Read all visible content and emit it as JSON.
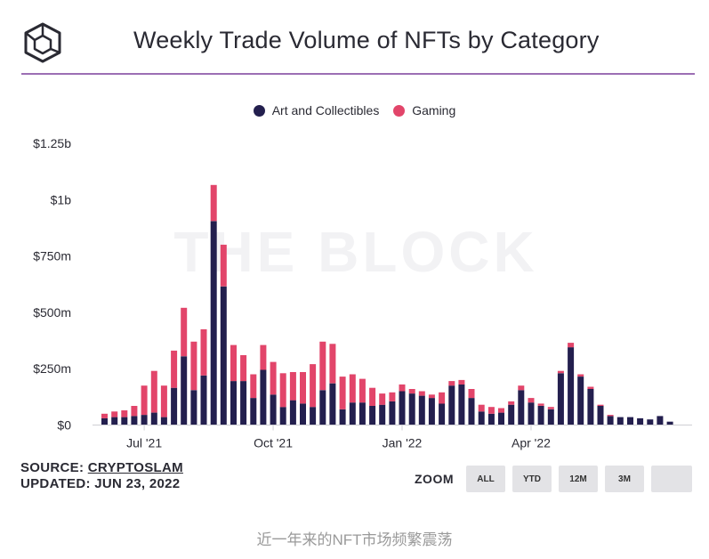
{
  "header": {
    "logo_icon": "the-block-cube-icon",
    "title": "Weekly Trade Volume of NFTs by Category"
  },
  "watermark": "THE BLOCK",
  "footer": {
    "source_prefix": "SOURCE: ",
    "source_name": "CRYPTOSLAM",
    "updated": "UPDATED: JUN 23, 2022"
  },
  "zoom": {
    "label": "ZOOM",
    "buttons": [
      "ALL",
      "YTD",
      "12M",
      "3M"
    ]
  },
  "caption": "近一年来的NFT市场频繁震荡",
  "colors": {
    "art": "#231f4e",
    "gaming": "#e2456a"
  },
  "chart_data": {
    "type": "bar",
    "stacked": true,
    "title": "Weekly Trade Volume of NFTs by Category",
    "legend_position": "top-center",
    "grid": false,
    "x_tick_labels": [
      "Jul '21",
      "Oct '21",
      "Jan '22",
      "Apr '22"
    ],
    "x_tick_index": [
      4,
      17,
      30,
      43
    ],
    "y_ticks": [
      0,
      250,
      500,
      750,
      1000,
      1250
    ],
    "y_tick_labels": [
      "$0",
      "$250m",
      "$500m",
      "$750m",
      "$1b",
      "$1.25b"
    ],
    "ylim": [
      0,
      1250
    ],
    "y_unit": "$m",
    "series": [
      {
        "name": "Art and Collectibles",
        "color": "#231f4e",
        "values": [
          30,
          35,
          35,
          40,
          45,
          55,
          35,
          165,
          305,
          155,
          220,
          905,
          615,
          195,
          195,
          120,
          245,
          135,
          80,
          110,
          95,
          80,
          155,
          185,
          70,
          100,
          100,
          85,
          90,
          105,
          150,
          140,
          130,
          120,
          95,
          175,
          180,
          120,
          60,
          50,
          55,
          90,
          155,
          100,
          85,
          70,
          230,
          345,
          215,
          160,
          85,
          40,
          35,
          35,
          30,
          25,
          40,
          15
        ]
      },
      {
        "name": "Gaming",
        "color": "#e2456a",
        "values": [
          20,
          25,
          30,
          45,
          130,
          185,
          140,
          165,
          215,
          215,
          205,
          160,
          185,
          160,
          115,
          105,
          110,
          145,
          150,
          125,
          140,
          190,
          215,
          175,
          145,
          125,
          105,
          80,
          50,
          40,
          30,
          20,
          20,
          15,
          50,
          20,
          20,
          40,
          30,
          30,
          20,
          15,
          20,
          20,
          10,
          10,
          10,
          20,
          10,
          10,
          5,
          5,
          0,
          0,
          0,
          0,
          0,
          0
        ]
      }
    ]
  }
}
